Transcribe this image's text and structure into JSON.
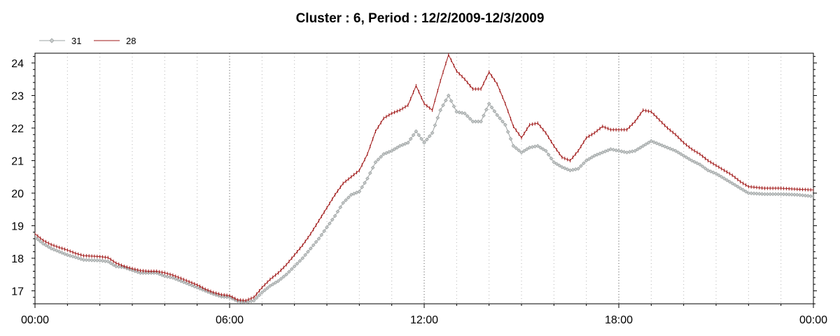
{
  "chart_data": {
    "type": "line",
    "title": "Cluster : 6, Period : 12/2/2009-12/3/2009",
    "xlabel": "",
    "ylabel": "",
    "x_ticks": [
      "00:00",
      "06:00",
      "12:00",
      "18:00",
      "00:00"
    ],
    "x_tick_hours": [
      0,
      6,
      12,
      18,
      24
    ],
    "xlim_hours": [
      0,
      24
    ],
    "ylim": [
      16.6,
      24.3
    ],
    "y_ticks": [
      17,
      18,
      19,
      20,
      21,
      22,
      23,
      24
    ],
    "grid": "vertical-dotted",
    "legend_position": "top-left",
    "series": [
      {
        "name": "31",
        "color": "#9ea3a3",
        "marker": "diamond",
        "points": [
          [
            0,
            18.65
          ],
          [
            0.25,
            18.45
          ],
          [
            0.5,
            18.3
          ],
          [
            0.75,
            18.2
          ],
          [
            1.0,
            18.1
          ],
          [
            1.25,
            18.03
          ],
          [
            1.5,
            17.95
          ],
          [
            2.0,
            17.93
          ],
          [
            2.25,
            17.9
          ],
          [
            2.5,
            17.75
          ],
          [
            2.75,
            17.72
          ],
          [
            3.0,
            17.63
          ],
          [
            3.25,
            17.55
          ],
          [
            3.5,
            17.55
          ],
          [
            3.75,
            17.55
          ],
          [
            4.0,
            17.45
          ],
          [
            4.25,
            17.4
          ],
          [
            4.5,
            17.3
          ],
          [
            4.75,
            17.2
          ],
          [
            5.0,
            17.1
          ],
          [
            5.25,
            17.0
          ],
          [
            5.5,
            16.9
          ],
          [
            5.75,
            16.82
          ],
          [
            6.0,
            16.8
          ],
          [
            6.25,
            16.68
          ],
          [
            6.5,
            16.65
          ],
          [
            6.75,
            16.7
          ],
          [
            7.0,
            16.95
          ],
          [
            7.25,
            17.15
          ],
          [
            7.5,
            17.3
          ],
          [
            7.75,
            17.5
          ],
          [
            8.0,
            17.75
          ],
          [
            8.25,
            18.0
          ],
          [
            8.5,
            18.3
          ],
          [
            8.75,
            18.6
          ],
          [
            9.0,
            18.95
          ],
          [
            9.25,
            19.3
          ],
          [
            9.5,
            19.7
          ],
          [
            9.75,
            19.95
          ],
          [
            10.0,
            20.05
          ],
          [
            10.25,
            20.45
          ],
          [
            10.5,
            20.95
          ],
          [
            10.75,
            21.2
          ],
          [
            11.0,
            21.3
          ],
          [
            11.25,
            21.45
          ],
          [
            11.5,
            21.55
          ],
          [
            11.75,
            21.9
          ],
          [
            12.0,
            21.55
          ],
          [
            12.25,
            21.85
          ],
          [
            12.5,
            22.55
          ],
          [
            12.75,
            23.0
          ],
          [
            13.0,
            22.5
          ],
          [
            13.25,
            22.45
          ],
          [
            13.5,
            22.2
          ],
          [
            13.75,
            22.2
          ],
          [
            14.0,
            22.75
          ],
          [
            14.25,
            22.4
          ],
          [
            14.5,
            22.1
          ],
          [
            14.75,
            21.45
          ],
          [
            15.0,
            21.25
          ],
          [
            15.25,
            21.4
          ],
          [
            15.5,
            21.45
          ],
          [
            15.75,
            21.3
          ],
          [
            16.0,
            20.95
          ],
          [
            16.25,
            20.8
          ],
          [
            16.5,
            20.7
          ],
          [
            16.75,
            20.75
          ],
          [
            17.0,
            21.0
          ],
          [
            17.25,
            21.15
          ],
          [
            17.5,
            21.25
          ],
          [
            17.75,
            21.35
          ],
          [
            18.0,
            21.3
          ],
          [
            18.25,
            21.25
          ],
          [
            18.5,
            21.3
          ],
          [
            18.75,
            21.45
          ],
          [
            19.0,
            21.6
          ],
          [
            19.25,
            21.5
          ],
          [
            19.5,
            21.4
          ],
          [
            19.75,
            21.3
          ],
          [
            20.0,
            21.15
          ],
          [
            20.25,
            21.0
          ],
          [
            20.5,
            20.88
          ],
          [
            20.75,
            20.7
          ],
          [
            21.0,
            20.6
          ],
          [
            21.25,
            20.45
          ],
          [
            21.5,
            20.3
          ],
          [
            21.75,
            20.15
          ],
          [
            22.0,
            20.0
          ],
          [
            22.5,
            19.97
          ],
          [
            23.0,
            19.97
          ],
          [
            23.5,
            19.95
          ],
          [
            24.0,
            19.9
          ],
          [
            24.5,
            19.85
          ],
          [
            25.0,
            19.85
          ],
          [
            25.5,
            19.82
          ],
          [
            25.75,
            19.75
          ]
        ]
      },
      {
        "name": "28",
        "color": "#a01818",
        "marker": "plus",
        "points": [
          [
            0,
            18.75
          ],
          [
            0.25,
            18.55
          ],
          [
            0.5,
            18.42
          ],
          [
            0.75,
            18.33
          ],
          [
            1.0,
            18.25
          ],
          [
            1.25,
            18.15
          ],
          [
            1.5,
            18.08
          ],
          [
            2.0,
            18.05
          ],
          [
            2.25,
            18.02
          ],
          [
            2.5,
            17.85
          ],
          [
            2.75,
            17.75
          ],
          [
            3.0,
            17.68
          ],
          [
            3.25,
            17.62
          ],
          [
            3.5,
            17.6
          ],
          [
            3.75,
            17.6
          ],
          [
            4.0,
            17.55
          ],
          [
            4.25,
            17.48
          ],
          [
            4.5,
            17.38
          ],
          [
            4.75,
            17.28
          ],
          [
            5.0,
            17.18
          ],
          [
            5.25,
            17.05
          ],
          [
            5.5,
            16.95
          ],
          [
            5.75,
            16.88
          ],
          [
            6.0,
            16.85
          ],
          [
            6.25,
            16.72
          ],
          [
            6.5,
            16.7
          ],
          [
            6.75,
            16.8
          ],
          [
            7.0,
            17.1
          ],
          [
            7.25,
            17.35
          ],
          [
            7.5,
            17.55
          ],
          [
            7.75,
            17.8
          ],
          [
            8.0,
            18.1
          ],
          [
            8.25,
            18.4
          ],
          [
            8.5,
            18.75
          ],
          [
            8.75,
            19.15
          ],
          [
            9.0,
            19.55
          ],
          [
            9.25,
            19.95
          ],
          [
            9.5,
            20.3
          ],
          [
            9.75,
            20.5
          ],
          [
            10.0,
            20.7
          ],
          [
            10.25,
            21.2
          ],
          [
            10.5,
            21.9
          ],
          [
            10.75,
            22.3
          ],
          [
            11.0,
            22.45
          ],
          [
            11.25,
            22.55
          ],
          [
            11.5,
            22.7
          ],
          [
            11.75,
            23.3
          ],
          [
            12.0,
            22.75
          ],
          [
            12.25,
            22.55
          ],
          [
            12.5,
            23.45
          ],
          [
            12.75,
            24.25
          ],
          [
            13.0,
            23.75
          ],
          [
            13.25,
            23.5
          ],
          [
            13.5,
            23.2
          ],
          [
            13.75,
            23.2
          ],
          [
            14.0,
            23.72
          ],
          [
            14.25,
            23.35
          ],
          [
            14.5,
            22.75
          ],
          [
            14.75,
            22.05
          ],
          [
            15.0,
            21.7
          ],
          [
            15.25,
            22.1
          ],
          [
            15.5,
            22.15
          ],
          [
            15.75,
            21.85
          ],
          [
            16.0,
            21.45
          ],
          [
            16.25,
            21.1
          ],
          [
            16.5,
            21.0
          ],
          [
            16.75,
            21.3
          ],
          [
            17.0,
            21.7
          ],
          [
            17.25,
            21.85
          ],
          [
            17.5,
            22.05
          ],
          [
            17.75,
            21.95
          ],
          [
            18.0,
            21.95
          ],
          [
            18.25,
            21.95
          ],
          [
            18.5,
            22.2
          ],
          [
            18.75,
            22.55
          ],
          [
            19.0,
            22.5
          ],
          [
            19.25,
            22.25
          ],
          [
            19.5,
            22.0
          ],
          [
            19.75,
            21.8
          ],
          [
            20.0,
            21.55
          ],
          [
            20.25,
            21.35
          ],
          [
            20.5,
            21.2
          ],
          [
            20.75,
            21.0
          ],
          [
            21.0,
            20.85
          ],
          [
            21.25,
            20.7
          ],
          [
            21.5,
            20.55
          ],
          [
            21.75,
            20.35
          ],
          [
            22.0,
            20.2
          ],
          [
            22.5,
            20.15
          ],
          [
            23.0,
            20.15
          ],
          [
            23.5,
            20.12
          ],
          [
            24.0,
            20.1
          ],
          [
            24.5,
            20.05
          ],
          [
            25.0,
            20.03
          ],
          [
            25.5,
            20.0
          ],
          [
            25.75,
            19.98
          ]
        ]
      }
    ]
  }
}
